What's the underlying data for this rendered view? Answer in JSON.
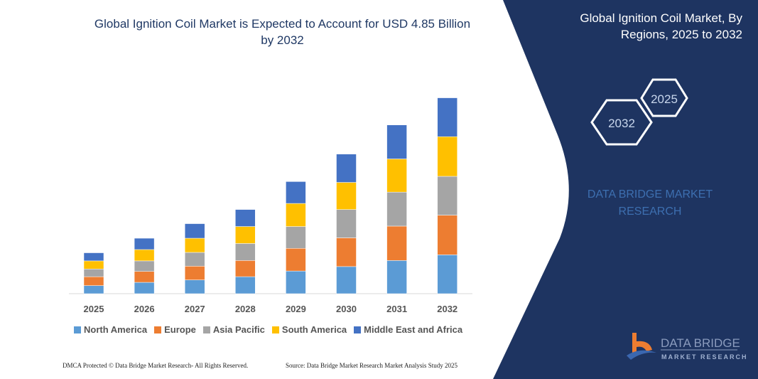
{
  "header": {
    "title_line1": "Global Ignition Coil Market is Expected to Account for USD 4.85 Billion",
    "title_line2": "by 2032"
  },
  "side_panel": {
    "title_line1": "Global Ignition Coil Market, By",
    "title_line2": "Regions, 2025 to 2032",
    "hex_start": "2025",
    "hex_end": "2032",
    "watermark_line1": "DATA BRIDGE MARKET",
    "watermark_line2": "RESEARCH",
    "logo_text": "DATA BRIDGE",
    "logo_subtext": "MARKET RESEARCH",
    "bg_color": "#1e3461"
  },
  "footer": {
    "left": "DMCA Protected © Data Bridge Market Research-  All Rights Reserved.",
    "right": "Source: Data Bridge Market Research  Market Analysis Study 2025"
  },
  "chart_data": {
    "type": "bar",
    "stacked": true,
    "title": "Global Ignition Coil Market is Expected to Account for USD 4.85 Billion by 2032",
    "xlabel": "",
    "ylabel": "",
    "ylim": [
      0,
      4.85
    ],
    "grid": false,
    "legend_position": "bottom",
    "categories": [
      "2025",
      "2026",
      "2027",
      "2028",
      "2029",
      "2030",
      "2031",
      "2032"
    ],
    "series": [
      {
        "name": "North America",
        "color": "#5b9bd5",
        "values": [
          0.2,
          0.28,
          0.34,
          0.42,
          0.56,
          0.67,
          0.82,
          0.96
        ]
      },
      {
        "name": "Europe",
        "color": "#ed7d31",
        "values": [
          0.22,
          0.27,
          0.34,
          0.4,
          0.56,
          0.71,
          0.85,
          0.98
        ]
      },
      {
        "name": "Asia Pacific",
        "color": "#a5a5a5",
        "values": [
          0.19,
          0.26,
          0.34,
          0.42,
          0.54,
          0.7,
          0.84,
          0.96
        ]
      },
      {
        "name": "South America",
        "color": "#ffc000",
        "values": [
          0.2,
          0.28,
          0.35,
          0.42,
          0.57,
          0.67,
          0.82,
          0.98
        ]
      },
      {
        "name": "Middle East and Africa",
        "color": "#4472c4",
        "values": [
          0.2,
          0.28,
          0.36,
          0.42,
          0.54,
          0.7,
          0.84,
          0.96
        ]
      }
    ]
  }
}
